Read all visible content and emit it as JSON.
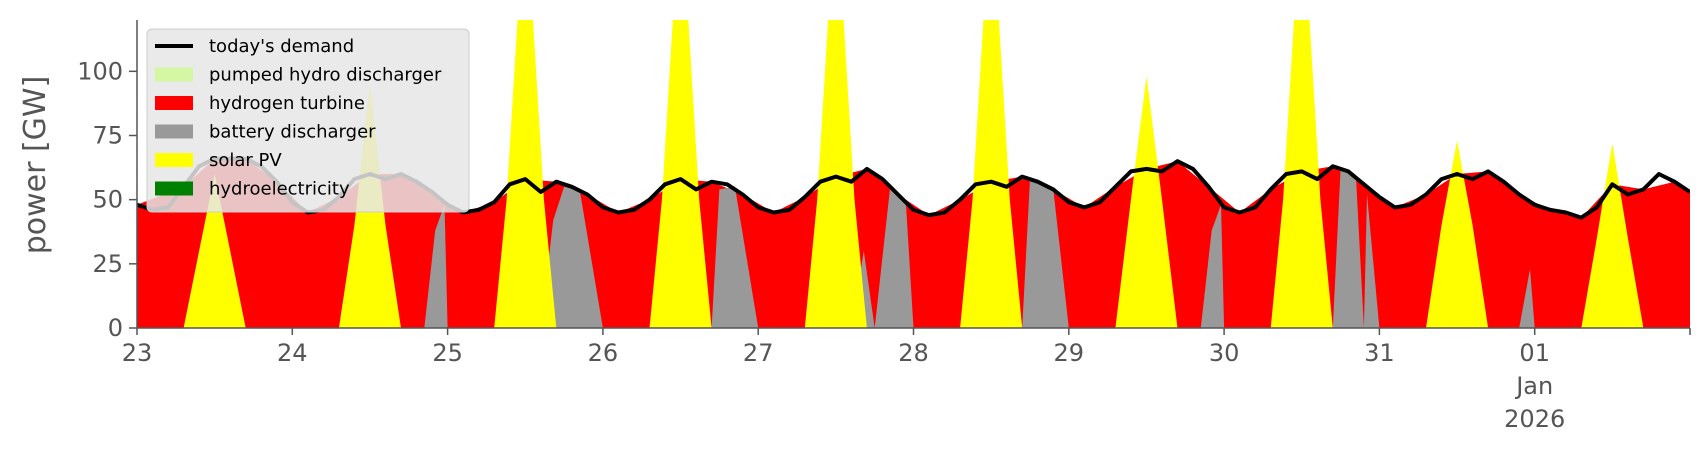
{
  "chart_data": {
    "type": "area",
    "ylabel": "power [GW]",
    "xlabel": "",
    "ylim": [
      0,
      120
    ],
    "xlim": [
      23,
      33
    ],
    "grid": false,
    "legend_placement": "top-left",
    "x_ticks": [
      {
        "x": 23,
        "label": "23"
      },
      {
        "x": 24,
        "label": "24"
      },
      {
        "x": 25,
        "label": "25"
      },
      {
        "x": 26,
        "label": "26"
      },
      {
        "x": 27,
        "label": "27"
      },
      {
        "x": 28,
        "label": "28"
      },
      {
        "x": 29,
        "label": "29"
      },
      {
        "x": 30,
        "label": "30"
      },
      {
        "x": 31,
        "label": "31"
      },
      {
        "x": 32,
        "label": "01",
        "sub": [
          "Jan",
          "2026"
        ]
      }
    ],
    "y_ticks": [
      {
        "y": 0,
        "label": "0"
      },
      {
        "y": 25,
        "label": "25"
      },
      {
        "y": 50,
        "label": "50"
      },
      {
        "y": 75,
        "label": "75"
      },
      {
        "y": 100,
        "label": "100"
      }
    ],
    "legend": [
      {
        "label": "today's demand",
        "color": "#000000",
        "kind": "line"
      },
      {
        "label": "pumped hydro discharger",
        "color": "#d4f7a4",
        "kind": "patch"
      },
      {
        "label": "hydrogen turbine",
        "color": "#ff0000",
        "kind": "patch"
      },
      {
        "label": "battery discharger",
        "color": "#999999",
        "kind": "patch"
      },
      {
        "label": "solar PV",
        "color": "#ffff00",
        "kind": "patch"
      },
      {
        "label": "hydroelectricity",
        "color": "#008000",
        "kind": "patch"
      }
    ],
    "demand": {
      "name": "today's demand",
      "color": "#000000",
      "points": [
        [
          23.0,
          48
        ],
        [
          23.1,
          46
        ],
        [
          23.2,
          47
        ],
        [
          23.3,
          55
        ],
        [
          23.4,
          63
        ],
        [
          23.5,
          66
        ],
        [
          23.6,
          66
        ],
        [
          23.7,
          66
        ],
        [
          23.8,
          63
        ],
        [
          23.9,
          57
        ],
        [
          24.0,
          49
        ],
        [
          24.1,
          45
        ],
        [
          24.2,
          46
        ],
        [
          24.3,
          51
        ],
        [
          24.4,
          58
        ],
        [
          24.5,
          60
        ],
        [
          24.6,
          58
        ],
        [
          24.7,
          60
        ],
        [
          24.8,
          57
        ],
        [
          24.9,
          53
        ],
        [
          25.0,
          48
        ],
        [
          25.1,
          45
        ],
        [
          25.2,
          46
        ],
        [
          25.3,
          49
        ],
        [
          25.4,
          56
        ],
        [
          25.5,
          58
        ],
        [
          25.6,
          53
        ],
        [
          25.7,
          57
        ],
        [
          25.8,
          55
        ],
        [
          25.9,
          52
        ],
        [
          26.0,
          47
        ],
        [
          26.1,
          45
        ],
        [
          26.2,
          46
        ],
        [
          26.3,
          50
        ],
        [
          26.4,
          56
        ],
        [
          26.5,
          58
        ],
        [
          26.6,
          54
        ],
        [
          26.7,
          57
        ],
        [
          26.8,
          56
        ],
        [
          26.9,
          52
        ],
        [
          27.0,
          47
        ],
        [
          27.1,
          45
        ],
        [
          27.2,
          46
        ],
        [
          27.3,
          51
        ],
        [
          27.4,
          57
        ],
        [
          27.5,
          59
        ],
        [
          27.6,
          57
        ],
        [
          27.7,
          62
        ],
        [
          27.8,
          58
        ],
        [
          27.9,
          52
        ],
        [
          28.0,
          46
        ],
        [
          28.1,
          44
        ],
        [
          28.2,
          45
        ],
        [
          28.3,
          50
        ],
        [
          28.4,
          56
        ],
        [
          28.5,
          57
        ],
        [
          28.6,
          55
        ],
        [
          28.7,
          59
        ],
        [
          28.8,
          57
        ],
        [
          28.9,
          54
        ],
        [
          29.0,
          49
        ],
        [
          29.1,
          47
        ],
        [
          29.2,
          49
        ],
        [
          29.3,
          55
        ],
        [
          29.4,
          61
        ],
        [
          29.5,
          62
        ],
        [
          29.6,
          61
        ],
        [
          29.7,
          65
        ],
        [
          29.8,
          62
        ],
        [
          29.9,
          55
        ],
        [
          30.0,
          47
        ],
        [
          30.1,
          45
        ],
        [
          30.2,
          47
        ],
        [
          30.3,
          54
        ],
        [
          30.4,
          60
        ],
        [
          30.5,
          61
        ],
        [
          30.6,
          58
        ],
        [
          30.7,
          63
        ],
        [
          30.8,
          61
        ],
        [
          30.9,
          56
        ],
        [
          31.0,
          51
        ],
        [
          31.1,
          47
        ],
        [
          31.2,
          48
        ],
        [
          31.3,
          52
        ],
        [
          31.4,
          58
        ],
        [
          31.5,
          60
        ],
        [
          31.6,
          58
        ],
        [
          31.7,
          61
        ],
        [
          31.8,
          57
        ],
        [
          31.9,
          52
        ],
        [
          32.0,
          48
        ],
        [
          32.1,
          46
        ],
        [
          32.2,
          45
        ],
        [
          32.3,
          43
        ],
        [
          32.4,
          47
        ],
        [
          32.5,
          56
        ],
        [
          32.6,
          52
        ],
        [
          32.7,
          54
        ],
        [
          32.8,
          60
        ],
        [
          32.9,
          57
        ],
        [
          33.0,
          53
        ]
      ]
    },
    "series": [
      {
        "name": "hydroelectricity",
        "color": "#008000",
        "points": [
          [
            23.0,
            0.5
          ],
          [
            33.0,
            0.5
          ]
        ]
      },
      {
        "name": "hydrogen turbine",
        "color": "#ff0000",
        "points": [
          [
            23.0,
            48
          ],
          [
            23.3,
            55
          ],
          [
            23.5,
            66
          ],
          [
            23.7,
            66
          ],
          [
            23.9,
            57
          ],
          [
            24.1,
            45
          ],
          [
            24.3,
            51
          ],
          [
            24.5,
            60
          ],
          [
            24.7,
            60
          ],
          [
            24.9,
            53
          ],
          [
            25.1,
            45
          ],
          [
            25.3,
            49
          ],
          [
            25.5,
            58
          ],
          [
            25.7,
            57
          ],
          [
            25.9,
            52
          ],
          [
            26.1,
            45
          ],
          [
            26.3,
            50
          ],
          [
            26.5,
            58
          ],
          [
            26.7,
            57
          ],
          [
            26.9,
            52
          ],
          [
            27.1,
            45
          ],
          [
            27.3,
            51
          ],
          [
            27.5,
            59
          ],
          [
            27.7,
            62
          ],
          [
            27.9,
            52
          ],
          [
            28.1,
            44
          ],
          [
            28.3,
            50
          ],
          [
            28.5,
            57
          ],
          [
            28.7,
            59
          ],
          [
            28.9,
            54
          ],
          [
            29.1,
            47
          ],
          [
            29.3,
            55
          ],
          [
            29.5,
            62
          ],
          [
            29.7,
            65
          ],
          [
            29.9,
            55
          ],
          [
            30.1,
            45
          ],
          [
            30.3,
            54
          ],
          [
            30.5,
            61
          ],
          [
            30.7,
            63
          ],
          [
            30.9,
            56
          ],
          [
            31.1,
            47
          ],
          [
            31.3,
            52
          ],
          [
            31.5,
            60
          ],
          [
            31.7,
            61
          ],
          [
            31.9,
            52
          ],
          [
            32.1,
            46
          ],
          [
            32.3,
            43
          ],
          [
            32.5,
            56
          ],
          [
            32.7,
            54
          ],
          [
            32.9,
            57
          ],
          [
            33.0,
            53
          ]
        ]
      },
      {
        "name": "battery discharger",
        "color": "#999999",
        "points": [
          [
            24.85,
            0
          ],
          [
            24.92,
            38
          ],
          [
            24.98,
            48
          ],
          [
            25.0,
            0
          ],
          [
            25.6,
            0
          ],
          [
            25.68,
            42
          ],
          [
            25.75,
            55
          ],
          [
            25.85,
            54
          ],
          [
            26.0,
            0
          ],
          [
            26.7,
            0
          ],
          [
            26.75,
            54
          ],
          [
            26.85,
            55
          ],
          [
            27.0,
            0
          ],
          [
            27.6,
            0
          ],
          [
            27.68,
            30
          ],
          [
            27.75,
            0
          ],
          [
            27.85,
            55
          ],
          [
            27.95,
            50
          ],
          [
            28.0,
            0
          ],
          [
            28.7,
            0
          ],
          [
            28.75,
            58
          ],
          [
            28.9,
            54
          ],
          [
            29.0,
            0
          ],
          [
            29.85,
            0
          ],
          [
            29.92,
            38
          ],
          [
            29.98,
            48
          ],
          [
            30.0,
            0
          ],
          [
            30.7,
            0
          ],
          [
            30.75,
            62
          ],
          [
            30.85,
            58
          ],
          [
            30.9,
            0
          ],
          [
            30.92,
            52
          ],
          [
            31.0,
            0
          ],
          [
            31.9,
            0
          ],
          [
            31.97,
            23
          ],
          [
            32.0,
            0
          ]
        ]
      },
      {
        "name": "solar PV",
        "color": "#ffff00",
        "points": [
          [
            23.3,
            0
          ],
          [
            23.4,
            30
          ],
          [
            23.5,
            60
          ],
          [
            23.6,
            30
          ],
          [
            23.7,
            0
          ],
          [
            24.3,
            0
          ],
          [
            24.4,
            40
          ],
          [
            24.5,
            95
          ],
          [
            24.6,
            40
          ],
          [
            24.7,
            0
          ],
          [
            25.3,
            0
          ],
          [
            25.38,
            50
          ],
          [
            25.45,
            120
          ],
          [
            25.55,
            120
          ],
          [
            25.62,
            50
          ],
          [
            25.7,
            0
          ],
          [
            26.3,
            0
          ],
          [
            26.38,
            50
          ],
          [
            26.45,
            120
          ],
          [
            26.55,
            120
          ],
          [
            26.62,
            50
          ],
          [
            26.7,
            0
          ],
          [
            27.3,
            0
          ],
          [
            27.38,
            50
          ],
          [
            27.45,
            120
          ],
          [
            27.55,
            120
          ],
          [
            27.62,
            50
          ],
          [
            27.7,
            0
          ],
          [
            28.3,
            0
          ],
          [
            28.38,
            50
          ],
          [
            28.45,
            120
          ],
          [
            28.55,
            120
          ],
          [
            28.62,
            50
          ],
          [
            28.7,
            0
          ],
          [
            29.3,
            0
          ],
          [
            29.4,
            50
          ],
          [
            29.5,
            98
          ],
          [
            29.6,
            50
          ],
          [
            29.7,
            0
          ],
          [
            30.3,
            0
          ],
          [
            30.38,
            50
          ],
          [
            30.45,
            120
          ],
          [
            30.55,
            120
          ],
          [
            30.62,
            50
          ],
          [
            30.7,
            0
          ],
          [
            31.3,
            0
          ],
          [
            31.4,
            40
          ],
          [
            31.5,
            73
          ],
          [
            31.6,
            40
          ],
          [
            31.7,
            0
          ],
          [
            32.3,
            0
          ],
          [
            32.4,
            35
          ],
          [
            32.5,
            72
          ],
          [
            32.6,
            35
          ],
          [
            32.7,
            0
          ]
        ]
      },
      {
        "name": "pumped hydro discharger",
        "color": "#d4f7a4",
        "points": [
          [
            23.0,
            0
          ],
          [
            33.0,
            0
          ]
        ]
      }
    ]
  }
}
